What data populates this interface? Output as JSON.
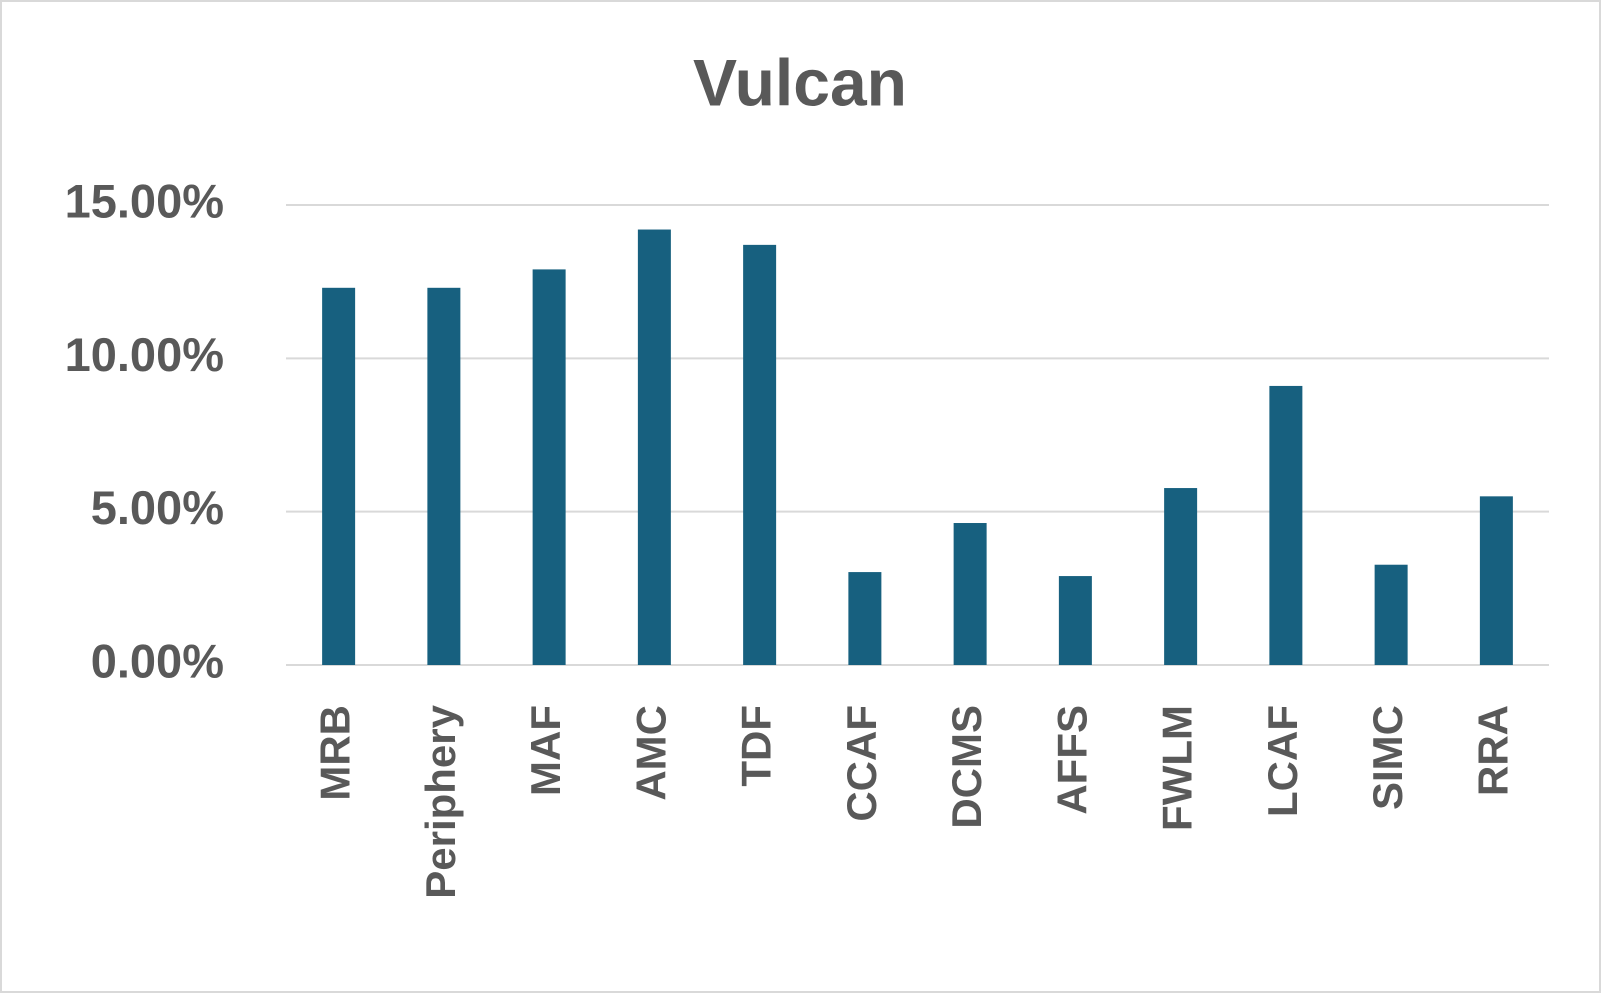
{
  "chart_data": {
    "type": "bar",
    "title": "Vulcan",
    "categories": [
      "MRB",
      "Periphery",
      "MAF",
      "AMC",
      "TDF",
      "CCAF",
      "DCMS",
      "AFFS",
      "FWLM",
      "LCAF",
      "SIMC",
      "RRA"
    ],
    "values": [
      12.3,
      12.3,
      12.9,
      14.2,
      13.7,
      3.03,
      4.63,
      2.9,
      5.77,
      9.1,
      3.27,
      5.5
    ],
    "color": "#17607f",
    "ylim": [
      0,
      15
    ],
    "yticks": [
      {
        "value": 0,
        "label": "0.00%"
      },
      {
        "value": 5,
        "label": "5.00%"
      },
      {
        "value": 10,
        "label": "10.00%"
      },
      {
        "value": 15,
        "label": "15.00%"
      }
    ],
    "grid": true
  }
}
